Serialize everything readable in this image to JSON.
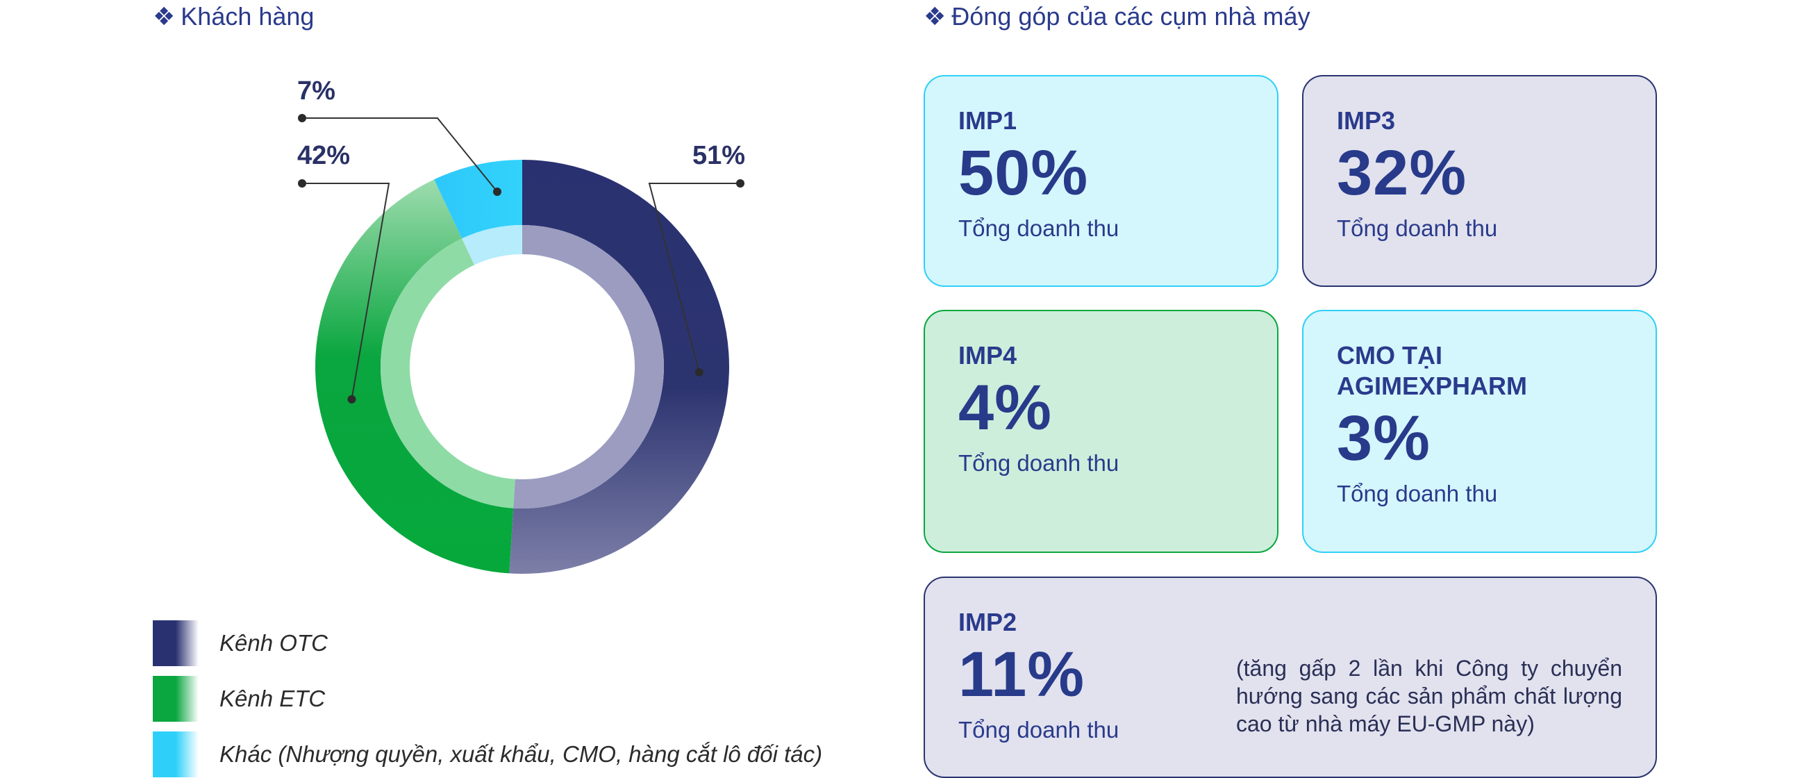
{
  "left_title": "Khách hàng",
  "right_title": "Đóng góp của các cụm nhà máy",
  "section_bullet": "❖",
  "chart_data": {
    "type": "pie",
    "title": "Khách hàng",
    "categories": [
      "Kênh OTC",
      "Kênh ETC",
      "Khác (Nhượng quyền, xuất khẩu, CMO, hàng cắt lô đối tác)"
    ],
    "values": [
      51,
      42,
      7
    ],
    "data_labels": [
      "51%",
      "42%",
      "7%"
    ],
    "colors": [
      "#2a3170",
      "#0aa63f",
      "#2ed0fa"
    ],
    "inner_colors": [
      "#9b9cc0",
      "#8edba6",
      "#b6ecfb"
    ]
  },
  "legend": [
    {
      "label": "Kênh OTC",
      "color": "#2a3170"
    },
    {
      "label": "Kênh ETC",
      "color": "#0aa63f"
    },
    {
      "label": "Khác (Nhượng quyền, xuất khẩu, CMO, hàng cắt lô đối tác)",
      "color": "#2ed0fa"
    }
  ],
  "cards": {
    "imp1": {
      "title": "IMP1",
      "value": "50%",
      "sub": "Tổng doanh thu"
    },
    "imp3": {
      "title": "IMP3",
      "value": "32%",
      "sub": "Tổng doanh thu"
    },
    "imp4": {
      "title": "IMP4",
      "value": "4%",
      "sub": "Tổng doanh thu"
    },
    "cmo": {
      "title_line1": "CMO TẠI",
      "title_line2": "AGIMEXPHARM",
      "value": "3%",
      "sub": "Tổng doanh thu"
    },
    "imp2": {
      "title": "IMP2",
      "value": "11%",
      "sub": "Tổng doanh thu",
      "note": "(tăng gấp 2 lần khi Công ty chuyển hướng sang các sản phẩm chất lượng cao từ nhà máy EU-GMP này)"
    }
  }
}
